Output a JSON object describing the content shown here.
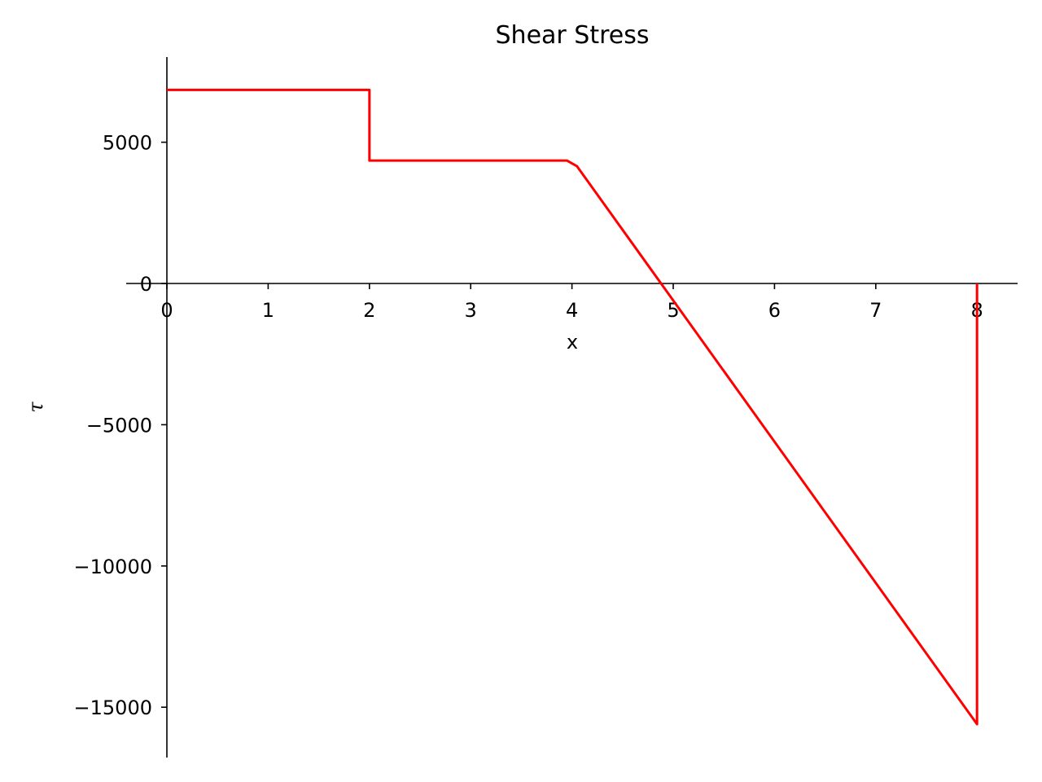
{
  "chart_data": {
    "type": "line",
    "title": "Shear Stress",
    "xlabel": "x",
    "ylabel": "τ",
    "xlim": [
      0,
      8.4
    ],
    "ylim": [
      -16700,
      8000
    ],
    "x_ticks": [
      0,
      1,
      2,
      3,
      4,
      5,
      6,
      7,
      8
    ],
    "y_ticks": [
      -15000,
      -10000,
      -5000,
      0,
      5000
    ],
    "y_tick_labels": [
      "−15000",
      "−10000",
      "−5000",
      "0",
      "5000"
    ],
    "grid": false,
    "legend": "none",
    "series": [
      {
        "color": "#ff0000",
        "x": [
          0,
          2,
          2,
          3.95,
          4.05,
          8,
          8
        ],
        "y": [
          6850,
          6850,
          4350,
          4350,
          4150,
          -15600,
          0
        ]
      }
    ]
  }
}
